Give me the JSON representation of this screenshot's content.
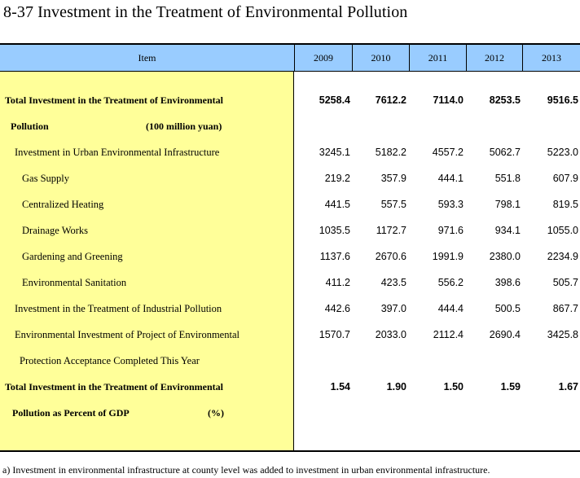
{
  "title": "8-37  Investment in the Treatment of Environmental Pollution",
  "header": {
    "item": "Item",
    "years": [
      "2009",
      "2010",
      "2011",
      "2012",
      "2013"
    ]
  },
  "rows": [
    {
      "label": "Total Investment in the Treatment of Environmental",
      "bold": true,
      "indent": 0,
      "values": [
        "5258.4",
        "7612.2",
        "7114.0",
        "8253.5",
        "9516.5"
      ]
    },
    {
      "label": "Pollution",
      "unit": "(100 million yuan)",
      "bold": true,
      "indent": 1,
      "values": []
    },
    {
      "label": "Investment in Urban Environmental Infrastructure",
      "bold": false,
      "indent": 2,
      "values": [
        "3245.1",
        "5182.2",
        "4557.2",
        "5062.7",
        "5223.0"
      ]
    },
    {
      "label": "Gas Supply",
      "bold": false,
      "indent": 3,
      "values": [
        "219.2",
        "357.9",
        "444.1",
        "551.8",
        "607.9"
      ]
    },
    {
      "label": "Centralized Heating",
      "bold": false,
      "indent": 3,
      "values": [
        "441.5",
        "557.5",
        "593.3",
        "798.1",
        "819.5"
      ]
    },
    {
      "label": "Drainage Works",
      "bold": false,
      "indent": 3,
      "values": [
        "1035.5",
        "1172.7",
        "971.6",
        "934.1",
        "1055.0"
      ]
    },
    {
      "label": "Gardening and Greening",
      "bold": false,
      "indent": 3,
      "values": [
        "1137.6",
        "2670.6",
        "1991.9",
        "2380.0",
        "2234.9"
      ]
    },
    {
      "label": "Environmental Sanitation",
      "bold": false,
      "indent": 3,
      "values": [
        "411.2",
        "423.5",
        "556.2",
        "398.6",
        "505.7"
      ]
    },
    {
      "label": "Investment in the Treatment of Industrial Pollution",
      "bold": false,
      "indent": 2,
      "values": [
        "442.6",
        "397.0",
        "444.4",
        "500.5",
        "867.7"
      ]
    },
    {
      "label": "Environmental Investment of Project of Environmental",
      "bold": false,
      "indent": 2,
      "values": [
        "1570.7",
        "2033.0",
        "2112.4",
        "2690.4",
        "3425.8"
      ]
    },
    {
      "label": "Protection Acceptance Completed This Year",
      "bold": false,
      "indent": 4,
      "values": []
    },
    {
      "label": "Total Investment in the Treatment of Environmental",
      "bold": true,
      "indent": 0,
      "values": [
        "1.54",
        "1.90",
        "1.50",
        "1.59",
        "1.67"
      ]
    },
    {
      "label": "Pollution as Percent of GDP",
      "unit": "(%)",
      "bold": true,
      "indent": 5,
      "values": []
    }
  ],
  "footnote": "a) Investment in environmental infrastructure at county level was added to investment in urban environmental infrastructure."
}
